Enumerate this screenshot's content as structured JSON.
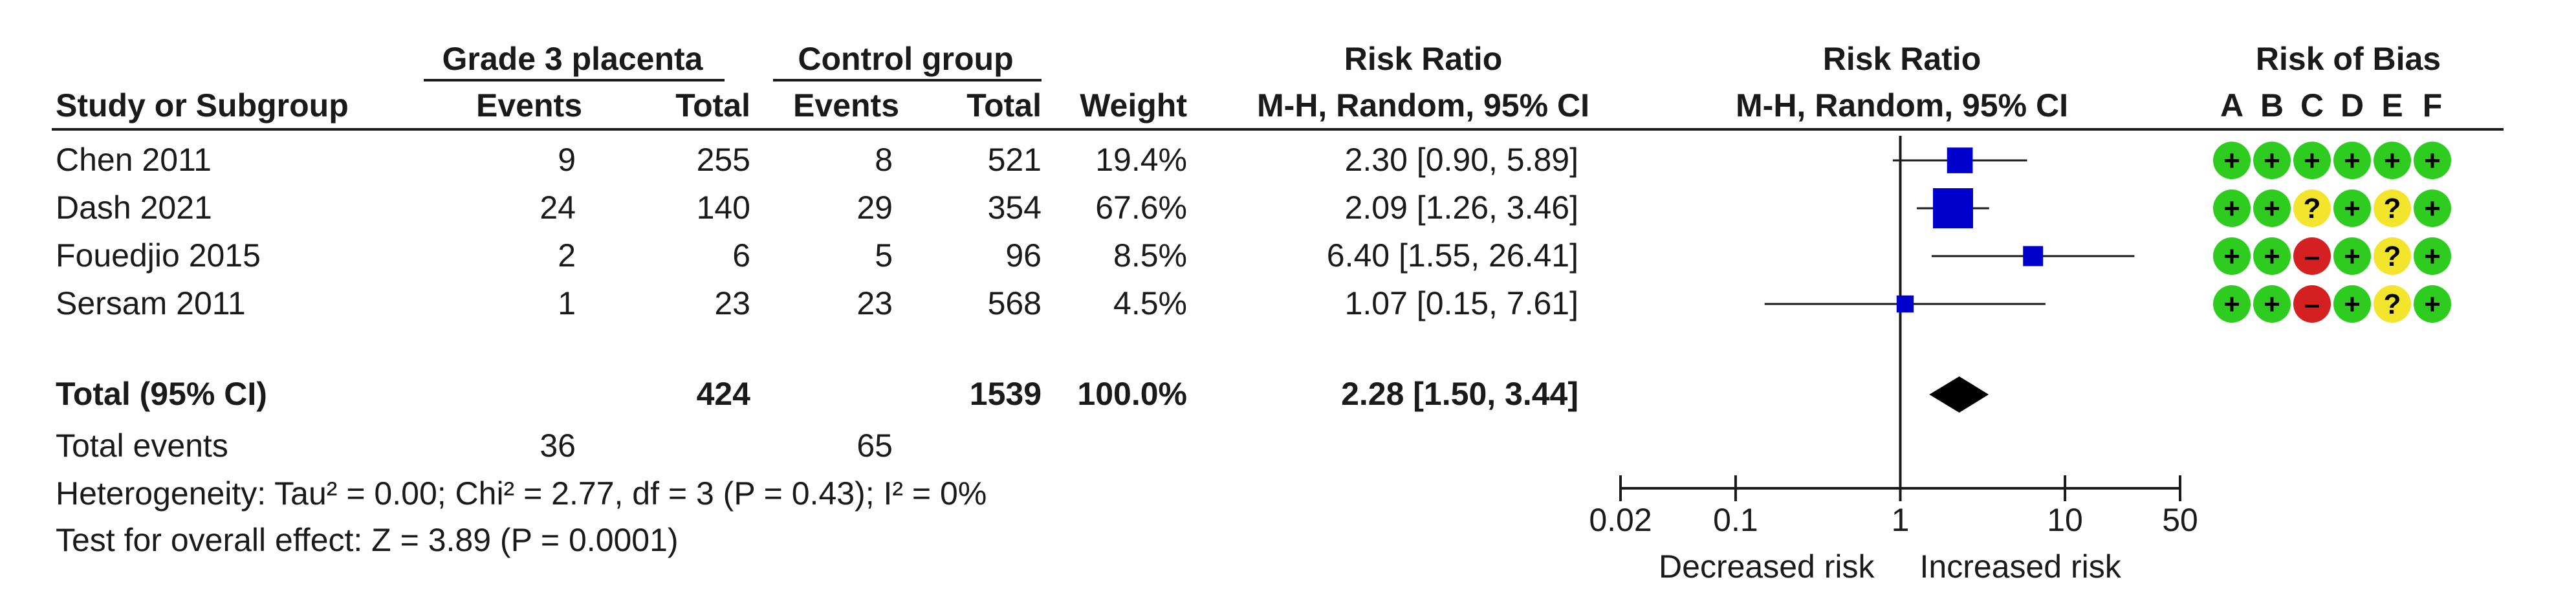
{
  "headers": {
    "group1": "Grade 3 placenta",
    "group2": "Control group",
    "rr_top": "Risk Ratio",
    "rr_plot_top": "Risk Ratio",
    "rob_top": "Risk of Bias",
    "study": "Study or Subgroup",
    "events1": "Events",
    "total1": "Total",
    "events2": "Events",
    "total2": "Total",
    "weight": "Weight",
    "rr_method": "M-H, Random, 95% CI",
    "rr_plot_method": "M-H, Random, 95% CI",
    "rob_letters": [
      "A",
      "B",
      "C",
      "D",
      "E",
      "F"
    ]
  },
  "studies": [
    {
      "name": "Chen 2011",
      "events1": "9",
      "total1": "255",
      "events2": "8",
      "total2": "521",
      "weight": "19.4%",
      "ci": "2.30 [0.90, 5.89]",
      "rob": [
        "+",
        "+",
        "+",
        "+",
        "+",
        "+"
      ]
    },
    {
      "name": "Dash 2021",
      "events1": "24",
      "total1": "140",
      "events2": "29",
      "total2": "354",
      "weight": "67.6%",
      "ci": "2.09 [1.26, 3.46]",
      "rob": [
        "+",
        "+",
        "?",
        "+",
        "?",
        "+"
      ]
    },
    {
      "name": "Fouedjio 2015",
      "events1": "2",
      "total1": "6",
      "events2": "5",
      "total2": "96",
      "weight": "8.5%",
      "ci": "6.40 [1.55, 26.41]",
      "rob": [
        "+",
        "+",
        "-",
        "+",
        "?",
        "+"
      ]
    },
    {
      "name": "Sersam 2011",
      "events1": "1",
      "total1": "23",
      "events2": "23",
      "total2": "568",
      "weight": "4.5%",
      "ci": "1.07 [0.15, 7.61]",
      "rob": [
        "+",
        "+",
        "-",
        "+",
        "?",
        "+"
      ]
    }
  ],
  "total": {
    "label": "Total (95% CI)",
    "total1": "424",
    "total2": "1539",
    "weight": "100.0%",
    "ci": "2.28 [1.50, 3.44]"
  },
  "total_events": {
    "label": "Total events",
    "events1": "36",
    "events2": "65"
  },
  "heterogeneity": "Heterogeneity: Tau² = 0.00; Chi² = 2.77, df = 3 (P = 0.43); I² = 0%",
  "overall_effect": "Test for overall effect: Z = 3.89 (P = 0.0001)",
  "axis": {
    "ticks": [
      "0.02",
      "0.1",
      "1",
      "10",
      "50"
    ],
    "left_label": "Decreased risk",
    "right_label": "Increased risk"
  },
  "colors": {
    "square": "#0000cc",
    "diamond": "#000000",
    "rob_low": "#2ecc1f",
    "rob_unclear": "#f2e52c",
    "rob_high": "#d42020"
  },
  "chart_data": {
    "type": "scatter",
    "x_scale": "log",
    "xlim": [
      0.02,
      50
    ],
    "x_ticks": [
      0.02,
      0.1,
      1,
      10,
      50
    ],
    "null_line": 1,
    "studies": [
      {
        "name": "Chen 2011",
        "rr": 2.3,
        "lo": 0.9,
        "hi": 5.89,
        "weight": 19.4
      },
      {
        "name": "Dash 2021",
        "rr": 2.09,
        "lo": 1.26,
        "hi": 3.46,
        "weight": 67.6
      },
      {
        "name": "Fouedjio 2015",
        "rr": 6.4,
        "lo": 1.55,
        "hi": 26.41,
        "weight": 8.5
      },
      {
        "name": "Sersam 2011",
        "rr": 1.07,
        "lo": 0.15,
        "hi": 7.61,
        "weight": 4.5
      }
    ],
    "pooled": {
      "rr": 2.28,
      "lo": 1.5,
      "hi": 3.44
    }
  }
}
